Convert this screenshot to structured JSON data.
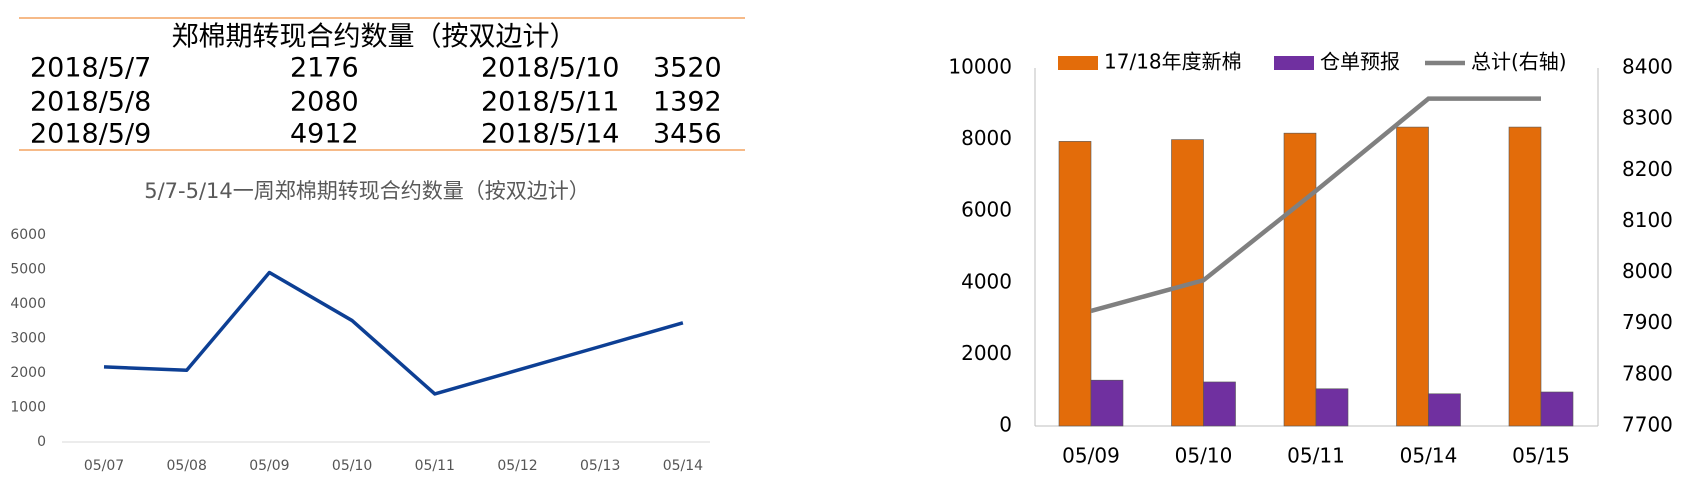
{
  "table": {
    "title": "郑棉期转现合约数量（按双边计）",
    "rows": [
      [
        "2018/5/7",
        2176,
        "2018/5/10",
        3520
      ],
      [
        "2018/5/8",
        2080,
        "2018/5/11",
        1392
      ],
      [
        "2018/5/9",
        4912,
        "2018/5/14",
        3456
      ]
    ]
  },
  "chart_data": [
    {
      "type": "line",
      "title": "5/7-5/14一周郑棉期转现合约数量（按双边计）",
      "categories": [
        "05/07",
        "05/08",
        "05/09",
        "05/10",
        "05/11",
        "05/12",
        "05/13",
        "05/14"
      ],
      "values": [
        2176,
        2080,
        4912,
        3520,
        1392,
        2080,
        2768,
        3456
      ],
      "color": "#0d3f94",
      "ylim": [
        0,
        6000
      ],
      "yticks": [
        0,
        1000,
        2000,
        3000,
        4000,
        5000,
        6000
      ],
      "grid": false
    },
    {
      "type": "bar_line",
      "categories": [
        "05/09",
        "05/10",
        "05/11",
        "05/14",
        "05/15"
      ],
      "series": [
        {
          "name": "17/18年度新棉",
          "color": "#e36c0a",
          "values": [
            7950,
            8000,
            8180,
            8350,
            8350
          ]
        },
        {
          "name": "仓单预报",
          "color": "#7030a0",
          "values": [
            1280,
            1230,
            1040,
            900,
            950
          ]
        },
        {
          "name": "总计(右轴)",
          "color": "#808080",
          "axis": "y2",
          "values": [
            7925,
            7985,
            8160,
            8340,
            8340
          ]
        }
      ],
      "ylim": [
        0,
        10000
      ],
      "yticks": [
        0,
        2000,
        4000,
        6000,
        8000,
        10000
      ],
      "y2lim": [
        7700,
        8400
      ],
      "y2ticks": [
        7700,
        7800,
        7900,
        8000,
        8100,
        8200,
        8300,
        8400
      ],
      "legend": "top",
      "grid": false
    }
  ]
}
